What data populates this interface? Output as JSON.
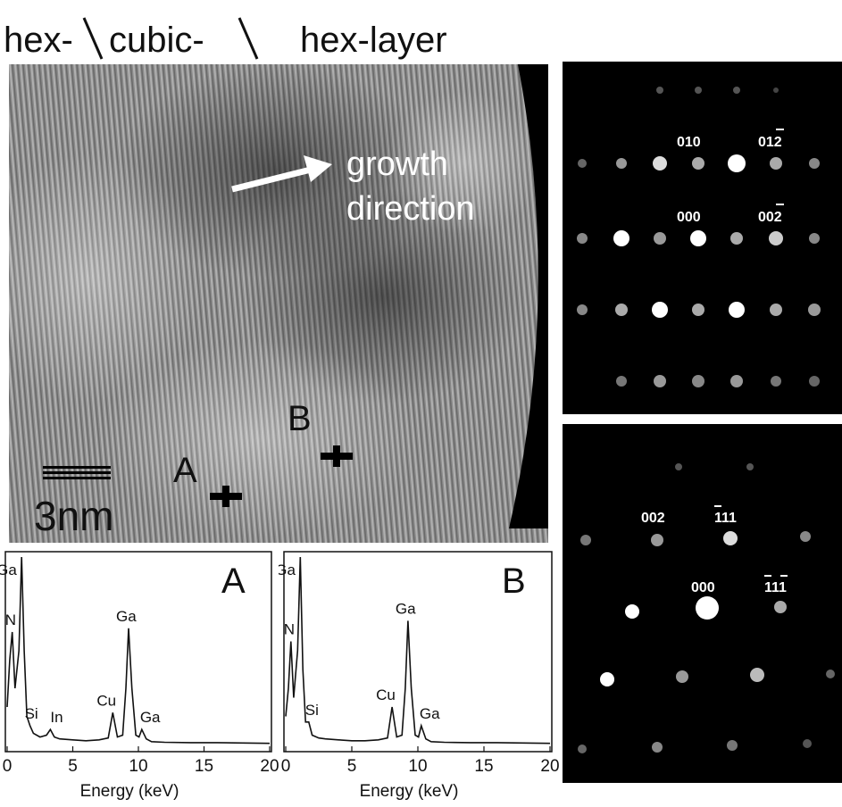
{
  "top_labels": {
    "hex_left": "hex-",
    "cubic": "cubic-",
    "hex_right": "hex-layer"
  },
  "hrtem": {
    "arrow_text_line1": "growth",
    "arrow_text_line2": "direction",
    "scale_bar": "3nm",
    "point_a": "A",
    "point_b": "B"
  },
  "saed_top": {
    "labels": [
      "010",
      "012",
      "000",
      "002"
    ]
  },
  "saed_bottom": {
    "labels": [
      "002",
      "111",
      "000",
      "111"
    ]
  },
  "chart_data": [
    {
      "type": "line",
      "panel_label": "A",
      "xlabel": "Energy (keV)",
      "xlim": [
        0,
        20
      ],
      "x_ticks": [
        "0",
        "5",
        "10",
        "15",
        "20"
      ],
      "peaks": [
        {
          "label": "N",
          "energy": 0.39
        },
        {
          "label": "Ga",
          "energy": 1.1
        },
        {
          "label": "Si",
          "energy": 1.74
        },
        {
          "label": "In",
          "energy": 3.29
        },
        {
          "label": "Cu",
          "energy": 8.05
        },
        {
          "label": "Ga",
          "energy": 9.25
        },
        {
          "label": "Ga",
          "energy": 10.26
        }
      ],
      "series": [
        {
          "x": [
            0,
            0.2,
            0.39,
            0.6,
            0.9,
            1.1,
            1.3,
            1.5,
            1.74,
            2.0,
            2.5,
            3.0,
            3.29,
            3.6,
            4.0,
            5,
            6,
            7,
            7.7,
            8.05,
            8.4,
            8.8,
            9.05,
            9.25,
            9.5,
            9.8,
            10.05,
            10.26,
            10.6,
            11,
            12,
            14,
            16,
            18,
            20
          ],
          "y": [
            0.2,
            0.45,
            0.6,
            0.3,
            0.5,
            1.0,
            0.5,
            0.15,
            0.1,
            0.06,
            0.04,
            0.05,
            0.08,
            0.04,
            0.03,
            0.025,
            0.02,
            0.025,
            0.035,
            0.17,
            0.04,
            0.05,
            0.3,
            0.62,
            0.3,
            0.05,
            0.04,
            0.08,
            0.03,
            0.015,
            0.012,
            0.01,
            0.01,
            0.008,
            0.006
          ]
        }
      ]
    },
    {
      "type": "line",
      "panel_label": "B",
      "xlabel": "Energy (keV)",
      "xlim": [
        0,
        20
      ],
      "x_ticks": [
        "0",
        "5",
        "10",
        "15",
        "20"
      ],
      "peaks": [
        {
          "label": "N",
          "energy": 0.39
        },
        {
          "label": "Ga",
          "energy": 1.1
        },
        {
          "label": "Si",
          "energy": 1.74
        },
        {
          "label": "Cu",
          "energy": 8.05
        },
        {
          "label": "Ga",
          "energy": 9.25
        },
        {
          "label": "Ga",
          "energy": 10.26
        }
      ],
      "series": [
        {
          "x": [
            0,
            0.2,
            0.39,
            0.6,
            0.9,
            1.1,
            1.3,
            1.5,
            1.74,
            2.0,
            2.5,
            3,
            4,
            5,
            6,
            7,
            7.7,
            8.05,
            8.4,
            8.8,
            9.05,
            9.25,
            9.5,
            9.8,
            10.05,
            10.26,
            10.6,
            11,
            12,
            14,
            16,
            18,
            20
          ],
          "y": [
            0.15,
            0.3,
            0.55,
            0.25,
            0.5,
            1.0,
            0.4,
            0.12,
            0.12,
            0.05,
            0.035,
            0.03,
            0.025,
            0.02,
            0.02,
            0.025,
            0.035,
            0.2,
            0.04,
            0.05,
            0.3,
            0.66,
            0.3,
            0.05,
            0.04,
            0.1,
            0.03,
            0.015,
            0.012,
            0.01,
            0.01,
            0.008,
            0.006
          ]
        }
      ]
    }
  ]
}
